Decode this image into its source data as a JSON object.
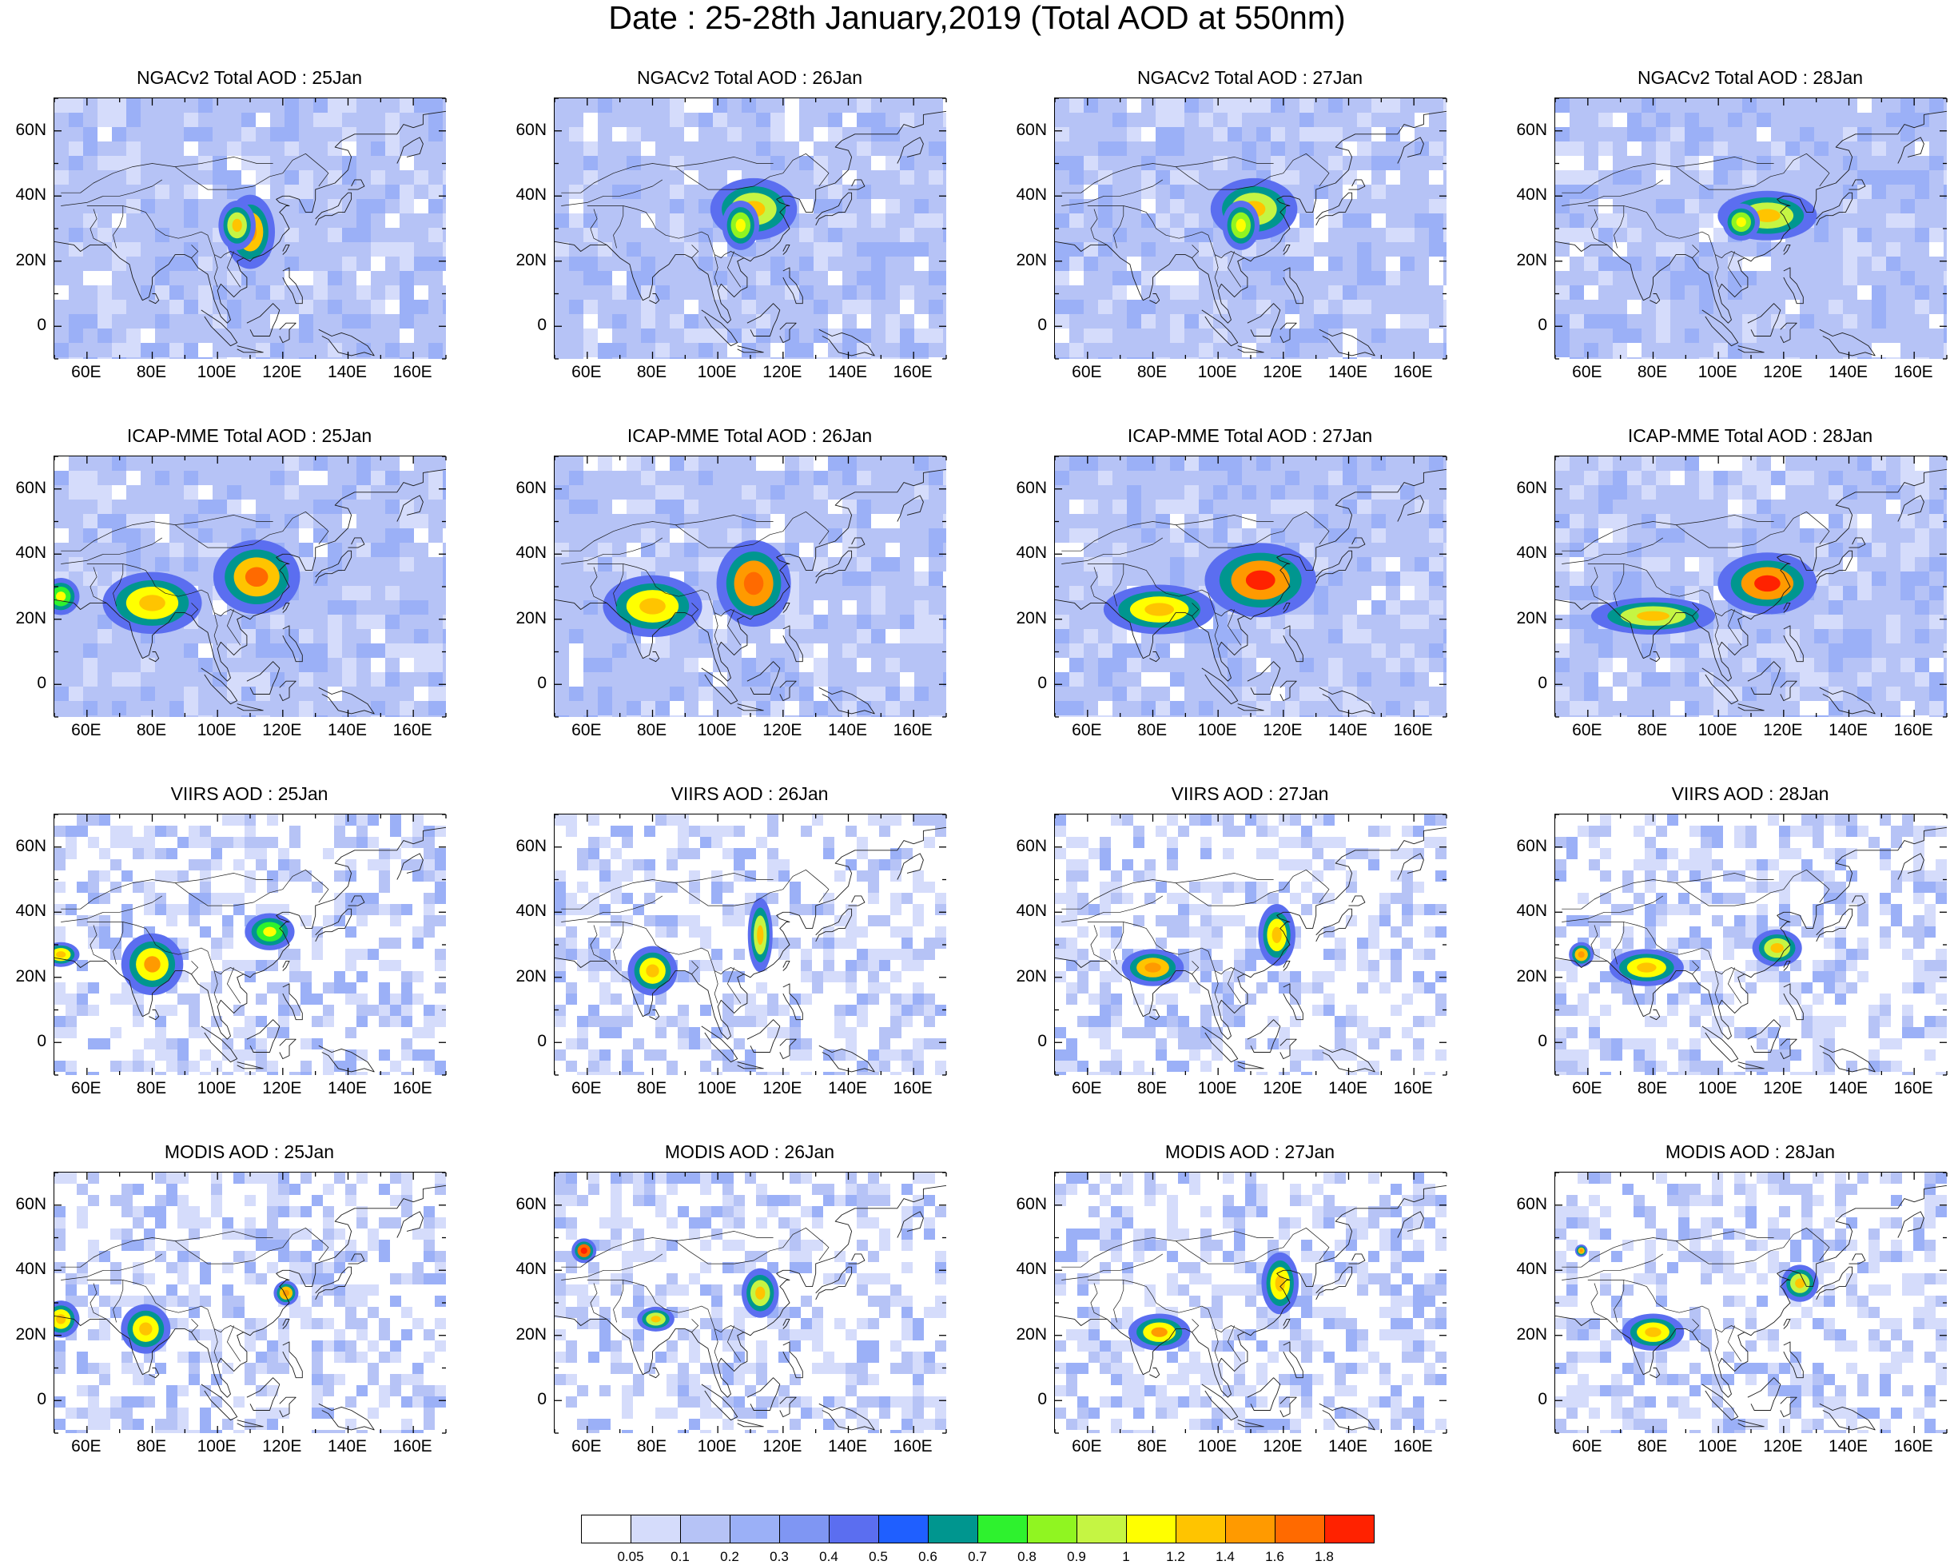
{
  "figure": {
    "title": "Date : 25-28th January,2019 (Total AOD at 550nm)"
  },
  "chart_data": {
    "type": "heatmap",
    "title": "Date : 25-28th January,2019 (Total AOD at 550nm)",
    "variable": "Total AOD at 550nm",
    "grid": {
      "rows": [
        "NGACv2",
        "ICAP-MME",
        "VIIRS",
        "MODIS"
      ],
      "columns": [
        "25Jan",
        "26Jan",
        "27Jan",
        "28Jan"
      ]
    },
    "panels": [
      {
        "title": "NGACv2 Total AOD : 25Jan",
        "product": "NGACv2",
        "day": 25
      },
      {
        "title": "NGACv2 Total AOD : 26Jan",
        "product": "NGACv2",
        "day": 26
      },
      {
        "title": "NGACv2 Total AOD : 27Jan",
        "product": "NGACv2",
        "day": 27
      },
      {
        "title": "NGACv2 Total AOD : 28Jan",
        "product": "NGACv2",
        "day": 28
      },
      {
        "title": "ICAP-MME Total AOD : 25Jan",
        "product": "ICAP-MME",
        "day": 25
      },
      {
        "title": "ICAP-MME Total AOD : 26Jan",
        "product": "ICAP-MME",
        "day": 26
      },
      {
        "title": "ICAP-MME Total AOD : 27Jan",
        "product": "ICAP-MME",
        "day": 27
      },
      {
        "title": "ICAP-MME Total AOD : 28Jan",
        "product": "ICAP-MME",
        "day": 28
      },
      {
        "title": "VIIRS AOD : 25Jan",
        "product": "VIIRS",
        "day": 25
      },
      {
        "title": "VIIRS AOD : 26Jan",
        "product": "VIIRS",
        "day": 26
      },
      {
        "title": "VIIRS AOD : 27Jan",
        "product": "VIIRS",
        "day": 27
      },
      {
        "title": "VIIRS AOD : 28Jan",
        "product": "VIIRS",
        "day": 28
      },
      {
        "title": "MODIS AOD : 25Jan",
        "product": "MODIS",
        "day": 25
      },
      {
        "title": "MODIS AOD : 26Jan",
        "product": "MODIS",
        "day": 26
      },
      {
        "title": "MODIS AOD : 27Jan",
        "product": "MODIS",
        "day": 27
      },
      {
        "title": "MODIS AOD : 28Jan",
        "product": "MODIS",
        "day": 28
      }
    ],
    "x_axis": {
      "range": [
        50,
        170
      ],
      "ticks": [
        60,
        80,
        100,
        120,
        140,
        160
      ],
      "tick_labels": [
        "60E",
        "80E",
        "100E",
        "120E",
        "140E",
        "160E"
      ]
    },
    "y_axis": {
      "range": [
        -10,
        70
      ],
      "ticks": [
        0,
        20,
        40,
        60
      ],
      "tick_labels": [
        "0",
        "20N",
        "40N",
        "60N"
      ]
    },
    "colorbar": {
      "levels": [
        "0.05",
        "0.1",
        "0.2",
        "0.3",
        "0.4",
        "0.5",
        "0.6",
        "0.7",
        "0.8",
        "0.9",
        "1",
        "1.2",
        "1.4",
        "1.6",
        "1.8"
      ],
      "colors": [
        "#ffffff",
        "#d5dcfb",
        "#b6c3f6",
        "#9bb0f7",
        "#7f96f3",
        "#5b6ef0",
        "#1f5fff",
        "#00968f",
        "#2ef22e",
        "#90f521",
        "#c5f543",
        "#ffff00",
        "#ffc400",
        "#ff9a00",
        "#ff6a00",
        "#ff2200"
      ]
    },
    "hotspots": [
      [
        {
          "lon": 110,
          "lat": 29,
          "v": 1.2,
          "rx": 4,
          "ry": 6
        },
        {
          "lon": 106,
          "lat": 31,
          "v": 0.9,
          "rx": 3,
          "ry": 4
        }
      ],
      [
        {
          "lon": 111,
          "lat": 36,
          "v": 0.9,
          "rx": 7,
          "ry": 5
        },
        {
          "lon": 107,
          "lat": 31,
          "v": 0.8,
          "rx": 3,
          "ry": 4
        }
      ],
      [
        {
          "lon": 111,
          "lat": 36,
          "v": 0.9,
          "rx": 7,
          "ry": 5
        },
        {
          "lon": 107,
          "lat": 31,
          "v": 0.8,
          "rx": 3,
          "ry": 4
        }
      ],
      [
        {
          "lon": 115,
          "lat": 34,
          "v": 0.9,
          "rx": 8,
          "ry": 4
        },
        {
          "lon": 107,
          "lat": 32,
          "v": 0.8,
          "rx": 3,
          "ry": 3
        }
      ],
      [
        {
          "lon": 80,
          "lat": 25,
          "v": 1.0,
          "rx": 8,
          "ry": 5
        },
        {
          "lon": 112,
          "lat": 33,
          "v": 1.3,
          "rx": 7,
          "ry": 6
        },
        {
          "lon": 52,
          "lat": 27,
          "v": 0.7,
          "rx": 3,
          "ry": 3
        }
      ],
      [
        {
          "lon": 80,
          "lat": 24,
          "v": 1.0,
          "rx": 8,
          "ry": 5
        },
        {
          "lon": 111,
          "lat": 31,
          "v": 1.4,
          "rx": 6,
          "ry": 7
        }
      ],
      [
        {
          "lon": 82,
          "lat": 23,
          "v": 1.0,
          "rx": 9,
          "ry": 4
        },
        {
          "lon": 113,
          "lat": 32,
          "v": 1.5,
          "rx": 9,
          "ry": 6
        }
      ],
      [
        {
          "lon": 80,
          "lat": 21,
          "v": 0.9,
          "rx": 10,
          "ry": 3
        },
        {
          "lon": 115,
          "lat": 31,
          "v": 1.5,
          "rx": 8,
          "ry": 5
        }
      ],
      [
        {
          "lon": 80,
          "lat": 24,
          "v": 1.1,
          "rx": 5,
          "ry": 5
        },
        {
          "lon": 52,
          "lat": 27,
          "v": 1.0,
          "rx": 3,
          "ry": 2
        },
        {
          "lon": 116,
          "lat": 34,
          "v": 0.7,
          "rx": 4,
          "ry": 3
        }
      ],
      [
        {
          "lon": 80,
          "lat": 22,
          "v": 1.0,
          "rx": 4,
          "ry": 4
        },
        {
          "lon": 113,
          "lat": 33,
          "v": 0.9,
          "rx": 2,
          "ry": 6
        }
      ],
      [
        {
          "lon": 80,
          "lat": 23,
          "v": 1.2,
          "rx": 5,
          "ry": 3
        },
        {
          "lon": 118,
          "lat": 33,
          "v": 1.0,
          "rx": 3,
          "ry": 5
        }
      ],
      [
        {
          "lon": 78,
          "lat": 23,
          "v": 1.0,
          "rx": 6,
          "ry": 3
        },
        {
          "lon": 118,
          "lat": 29,
          "v": 0.9,
          "rx": 4,
          "ry": 3
        },
        {
          "lon": 58,
          "lat": 27,
          "v": 1.2,
          "rx": 2,
          "ry": 2
        }
      ],
      [
        {
          "lon": 78,
          "lat": 22,
          "v": 1.0,
          "rx": 4,
          "ry": 4
        },
        {
          "lon": 52,
          "lat": 25,
          "v": 1.0,
          "rx": 3,
          "ry": 3
        },
        {
          "lon": 121,
          "lat": 33,
          "v": 1.2,
          "rx": 2,
          "ry": 2
        }
      ],
      [
        {
          "lon": 81,
          "lat": 25,
          "v": 0.9,
          "rx": 3,
          "ry": 2
        },
        {
          "lon": 113,
          "lat": 33,
          "v": 0.9,
          "rx": 3,
          "ry": 4
        },
        {
          "lon": 59,
          "lat": 46,
          "v": 1.6,
          "rx": 2,
          "ry": 2
        }
      ],
      [
        {
          "lon": 82,
          "lat": 21,
          "v": 1.1,
          "rx": 5,
          "ry": 3
        },
        {
          "lon": 119,
          "lat": 36,
          "v": 1.0,
          "rx": 3,
          "ry": 5
        }
      ],
      [
        {
          "lon": 80,
          "lat": 21,
          "v": 1.0,
          "rx": 5,
          "ry": 3
        },
        {
          "lon": 125,
          "lat": 36,
          "v": 0.9,
          "rx": 3,
          "ry": 3
        },
        {
          "lon": 58,
          "lat": 46,
          "v": 1.2,
          "rx": 1,
          "ry": 1
        }
      ]
    ]
  }
}
